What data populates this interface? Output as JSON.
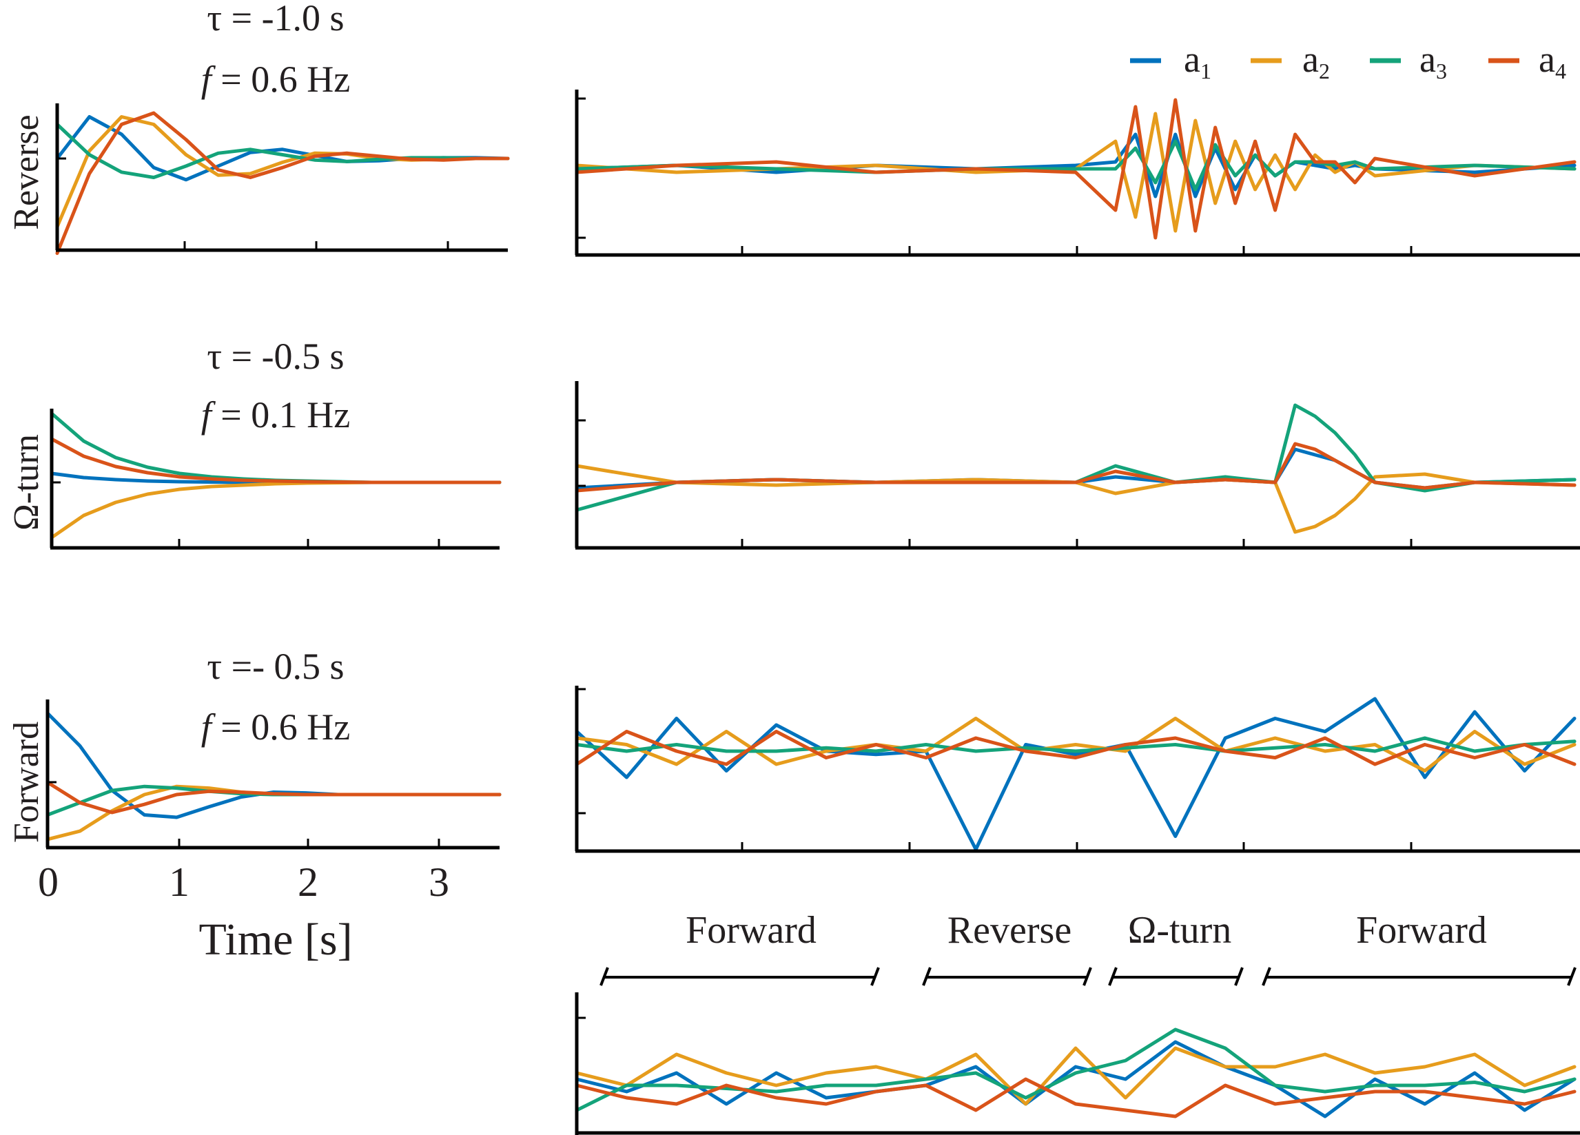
{
  "colors": {
    "a1": "#0072bd",
    "a2": "#e69c1c",
    "a3": "#14a37a",
    "a4": "#d95319",
    "axis": "#000000"
  },
  "legend": [
    {
      "key": "a1",
      "base": "a",
      "sub": "1",
      "color": "#0072bd"
    },
    {
      "key": "a2",
      "base": "a",
      "sub": "2",
      "color": "#e69c1c"
    },
    {
      "key": "a3",
      "base": "a",
      "sub": "3",
      "color": "#14a37a"
    },
    {
      "key": "a4",
      "base": "a",
      "sub": "4",
      "color": "#d95319"
    }
  ],
  "left_panels": [
    {
      "ylabel": "Reverse",
      "title_line1": "τ = -1.0 s",
      "title_f": "f",
      "title_rest": " = 0.6 Hz"
    },
    {
      "ylabel": "Ω-turn",
      "title_line1": "τ = -0.5 s",
      "title_f": "f",
      "title_rest": " = 0.1 Hz"
    },
    {
      "ylabel": "Forward",
      "title_line1": "τ =- 0.5 s",
      "title_f": "f",
      "title_rest": " = 0.6 Hz"
    }
  ],
  "xaxis": {
    "label": "Time [s]",
    "ticks": [
      "0",
      "1",
      "2",
      "3"
    ]
  },
  "segments": [
    "Forward",
    "Reverse",
    "Ω-turn",
    "Forward"
  ],
  "chart_data": [
    {
      "type": "line",
      "panel": "Reverse impulse response",
      "xlabel": "Time [s]",
      "xlim": [
        0,
        3.5
      ],
      "x": [
        0,
        0.25,
        0.5,
        0.75,
        1.0,
        1.25,
        1.5,
        1.75,
        2.0,
        2.25,
        2.5,
        2.75,
        3.0,
        3.25,
        3.5
      ],
      "series": [
        {
          "name": "a1",
          "values": [
            0.0,
            0.55,
            0.32,
            -0.12,
            -0.28,
            -0.1,
            0.08,
            0.12,
            0.04,
            -0.04,
            -0.03,
            0.0,
            0.01,
            0.01,
            0.0
          ]
        },
        {
          "name": "a2",
          "values": [
            -0.9,
            0.1,
            0.55,
            0.45,
            0.05,
            -0.22,
            -0.2,
            -0.05,
            0.07,
            0.06,
            0.0,
            -0.02,
            -0.01,
            0.0,
            0.0
          ]
        },
        {
          "name": "a3",
          "values": [
            0.45,
            0.05,
            -0.18,
            -0.25,
            -0.1,
            0.07,
            0.12,
            0.05,
            -0.02,
            -0.04,
            -0.01,
            0.01,
            0.01,
            0.0,
            0.0
          ]
        },
        {
          "name": "a4",
          "values": [
            -1.25,
            -0.2,
            0.45,
            0.6,
            0.25,
            -0.15,
            -0.25,
            -0.12,
            0.03,
            0.07,
            0.03,
            -0.01,
            -0.02,
            0.0,
            0.0
          ]
        }
      ]
    },
    {
      "type": "line",
      "panel": "Ω-turn impulse response",
      "xlabel": "Time [s]",
      "xlim": [
        0,
        3.5
      ],
      "x": [
        0,
        0.25,
        0.5,
        0.75,
        1.0,
        1.25,
        1.5,
        1.75,
        2.0,
        2.5,
        3.0,
        3.5
      ],
      "series": [
        {
          "name": "a1",
          "values": [
            0.13,
            0.07,
            0.04,
            0.02,
            0.01,
            0.005,
            0.0,
            0.0,
            0.0,
            0.0,
            0.0,
            0.0
          ]
        },
        {
          "name": "a2",
          "values": [
            -0.8,
            -0.48,
            -0.29,
            -0.17,
            -0.1,
            -0.06,
            -0.04,
            -0.02,
            -0.01,
            0.0,
            0.0,
            0.0
          ]
        },
        {
          "name": "a3",
          "values": [
            1.0,
            0.6,
            0.36,
            0.22,
            0.13,
            0.08,
            0.05,
            0.03,
            0.02,
            0.0,
            0.0,
            0.0
          ]
        },
        {
          "name": "a4",
          "values": [
            0.63,
            0.38,
            0.23,
            0.14,
            0.08,
            0.05,
            0.03,
            0.02,
            0.01,
            0.0,
            0.0,
            0.0
          ]
        }
      ]
    },
    {
      "type": "line",
      "panel": "Forward impulse response",
      "xlabel": "Time [s]",
      "xlim": [
        0,
        3.5
      ],
      "x": [
        0,
        0.25,
        0.5,
        0.75,
        1.0,
        1.25,
        1.5,
        1.75,
        2.0,
        2.25,
        2.5,
        3.0,
        3.5
      ],
      "series": [
        {
          "name": "a1",
          "values": [
            1.0,
            0.6,
            0.05,
            -0.25,
            -0.28,
            -0.15,
            -0.03,
            0.03,
            0.02,
            0.0,
            0.0,
            0.0,
            0.0
          ]
        },
        {
          "name": "a2",
          "values": [
            -0.55,
            -0.45,
            -0.2,
            0.0,
            0.1,
            0.08,
            0.03,
            0.0,
            0.0,
            0.0,
            0.0,
            0.0,
            0.0
          ]
        },
        {
          "name": "a3",
          "values": [
            -0.25,
            -0.1,
            0.05,
            0.1,
            0.08,
            0.04,
            0.01,
            0.0,
            0.0,
            0.0,
            0.0,
            0.0,
            0.0
          ]
        },
        {
          "name": "a4",
          "values": [
            0.15,
            -0.1,
            -0.22,
            -0.12,
            0.0,
            0.04,
            0.03,
            0.01,
            0.0,
            0.0,
            0.0,
            0.0,
            0.0
          ]
        }
      ]
    },
    {
      "type": "line",
      "panel": "Reverse mode activity",
      "x": [
        0,
        100,
        200,
        300,
        400,
        500,
        540,
        560,
        580,
        600,
        620,
        640,
        660,
        680,
        700,
        720,
        740,
        760,
        780,
        800,
        900,
        1000
      ],
      "series": [
        {
          "name": "a1",
          "values": [
            0.0,
            0.05,
            -0.05,
            0.05,
            0.0,
            0.05,
            0.1,
            0.5,
            -0.4,
            0.5,
            -0.4,
            0.3,
            -0.3,
            0.2,
            -0.1,
            0.1,
            0.05,
            0.0,
            0.05,
            0.0,
            -0.05,
            0.05
          ]
        },
        {
          "name": "a2",
          "values": [
            0.05,
            -0.05,
            0.0,
            0.05,
            -0.05,
            0.0,
            0.4,
            -0.7,
            0.8,
            -0.9,
            0.7,
            -0.5,
            0.4,
            -0.3,
            0.2,
            -0.3,
            0.2,
            -0.05,
            0.1,
            -0.1,
            0.05,
            0.0
          ]
        },
        {
          "name": "a3",
          "values": [
            0.0,
            0.05,
            0.0,
            -0.05,
            0.0,
            0.0,
            0.0,
            0.3,
            -0.2,
            0.4,
            -0.3,
            0.35,
            -0.1,
            0.2,
            -0.1,
            0.1,
            0.1,
            0.05,
            0.1,
            0.0,
            0.05,
            0.0
          ]
        },
        {
          "name": "a4",
          "values": [
            -0.05,
            0.05,
            0.1,
            -0.05,
            0.0,
            -0.05,
            -0.6,
            0.9,
            -1.0,
            1.0,
            -0.9,
            0.6,
            -0.5,
            0.4,
            -0.6,
            0.5,
            0.1,
            0.1,
            -0.2,
            0.15,
            -0.1,
            0.1
          ]
        }
      ]
    },
    {
      "type": "line",
      "panel": "Ω-turn mode activity",
      "x": [
        0,
        100,
        200,
        300,
        400,
        500,
        540,
        600,
        650,
        700,
        720,
        740,
        760,
        780,
        800,
        850,
        900,
        1000
      ],
      "series": [
        {
          "name": "a1",
          "values": [
            -0.1,
            0.0,
            0.05,
            0.0,
            0.05,
            0.0,
            0.1,
            0.0,
            0.05,
            0.0,
            0.6,
            0.5,
            0.4,
            0.2,
            0.0,
            -0.1,
            0.0,
            0.05
          ]
        },
        {
          "name": "a2",
          "values": [
            0.3,
            0.0,
            -0.05,
            0.0,
            0.05,
            0.0,
            -0.2,
            0.0,
            0.05,
            0.0,
            -0.9,
            -0.8,
            -0.6,
            -0.3,
            0.1,
            0.15,
            0.0,
            -0.05
          ]
        },
        {
          "name": "a3",
          "values": [
            -0.5,
            0.0,
            0.05,
            0.0,
            0.0,
            0.0,
            0.3,
            0.0,
            0.1,
            0.0,
            1.4,
            1.2,
            0.9,
            0.5,
            0.0,
            -0.15,
            0.0,
            0.05
          ]
        },
        {
          "name": "a4",
          "values": [
            -0.15,
            0.0,
            0.05,
            0.0,
            0.0,
            0.0,
            0.2,
            0.0,
            0.05,
            0.0,
            0.7,
            0.6,
            0.4,
            0.2,
            0.0,
            -0.1,
            0.0,
            -0.05
          ]
        }
      ]
    },
    {
      "type": "line",
      "panel": "Forward mode activity",
      "x": [
        0,
        50,
        100,
        150,
        200,
        250,
        300,
        350,
        400,
        450,
        500,
        550,
        600,
        650,
        700,
        750,
        800,
        850,
        900,
        950,
        1000
      ],
      "series": [
        {
          "name": "a1",
          "values": [
            0.3,
            -0.4,
            0.5,
            -0.3,
            0.4,
            0.0,
            -0.05,
            0.0,
            -1.5,
            0.1,
            -0.05,
            0.1,
            -1.3,
            0.2,
            0.5,
            0.3,
            0.8,
            -0.4,
            0.6,
            -0.3,
            0.5
          ]
        },
        {
          "name": "a2",
          "values": [
            0.2,
            0.1,
            -0.2,
            0.3,
            -0.2,
            0.0,
            0.1,
            0.0,
            0.5,
            0.0,
            0.1,
            0.0,
            0.5,
            0.0,
            0.2,
            0.0,
            0.1,
            -0.3,
            0.3,
            -0.2,
            0.1
          ]
        },
        {
          "name": "a3",
          "values": [
            0.1,
            0.0,
            0.1,
            0.0,
            0.0,
            0.05,
            0.0,
            0.1,
            0.0,
            0.05,
            0.0,
            0.05,
            0.1,
            0.0,
            0.05,
            0.1,
            0.0,
            0.2,
            0.0,
            0.1,
            0.15
          ]
        },
        {
          "name": "a4",
          "values": [
            -0.2,
            0.3,
            0.0,
            -0.2,
            0.3,
            -0.1,
            0.1,
            -0.1,
            0.2,
            0.0,
            -0.1,
            0.1,
            0.2,
            0.0,
            -0.1,
            0.2,
            -0.2,
            0.1,
            -0.1,
            0.1,
            -0.2
          ]
        }
      ]
    },
    {
      "type": "line",
      "panel": "Mode amplitudes with behaviour segments",
      "x": [
        0,
        50,
        100,
        150,
        200,
        250,
        300,
        350,
        400,
        450,
        500,
        550,
        600,
        650,
        700,
        750,
        800,
        850,
        900,
        950,
        1000
      ],
      "series": [
        {
          "name": "a1",
          "values": [
            0.1,
            -0.1,
            0.2,
            -0.3,
            0.2,
            -0.2,
            -0.1,
            0.0,
            0.3,
            -0.3,
            0.3,
            0.1,
            0.7,
            0.3,
            0.0,
            -0.5,
            0.1,
            -0.3,
            0.2,
            -0.4,
            0.1
          ]
        },
        {
          "name": "a2",
          "values": [
            0.2,
            0.0,
            0.5,
            0.2,
            0.0,
            0.2,
            0.3,
            0.1,
            0.5,
            -0.3,
            0.6,
            -0.2,
            0.6,
            0.3,
            0.3,
            0.5,
            0.2,
            0.3,
            0.5,
            0.0,
            0.3
          ]
        },
        {
          "name": "a3",
          "values": [
            -0.4,
            0.0,
            0.0,
            -0.05,
            -0.1,
            0.0,
            0.0,
            0.1,
            0.2,
            -0.2,
            0.2,
            0.4,
            0.9,
            0.6,
            0.0,
            -0.1,
            0.0,
            0.0,
            0.05,
            -0.1,
            0.1
          ]
        },
        {
          "name": "a4",
          "values": [
            0.0,
            -0.2,
            -0.3,
            0.0,
            -0.2,
            -0.3,
            -0.1,
            0.0,
            -0.4,
            0.1,
            -0.3,
            -0.4,
            -0.5,
            0.0,
            -0.3,
            -0.2,
            -0.1,
            -0.1,
            -0.2,
            -0.3,
            -0.1
          ]
        }
      ]
    }
  ]
}
